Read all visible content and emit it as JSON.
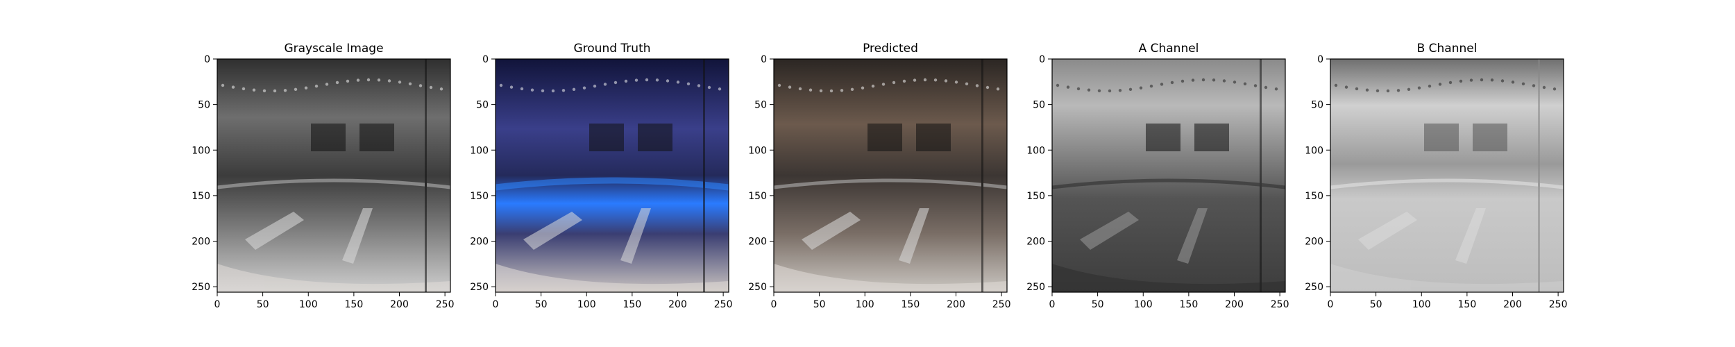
{
  "figure": {
    "panels": [
      {
        "title": "Grayscale Image",
        "icon": "grayscale-image",
        "tone": "gray"
      },
      {
        "title": "Ground Truth",
        "icon": "color-image",
        "tone": "blue"
      },
      {
        "title": "Predicted",
        "icon": "color-image",
        "tone": "warm"
      },
      {
        "title": "A Channel",
        "icon": "channel-image",
        "tone": "gray"
      },
      {
        "title": "B Channel",
        "icon": "channel-image",
        "tone": "light"
      }
    ]
  },
  "chart_data": {
    "type": "image-grid",
    "x_ticks": [
      0,
      50,
      100,
      150,
      200,
      250
    ],
    "y_ticks": [
      0,
      50,
      100,
      150,
      200,
      250
    ],
    "xlim": [
      0,
      256
    ],
    "ylim": [
      256,
      0
    ],
    "panels": [
      {
        "title": "Grayscale Image"
      },
      {
        "title": "Ground Truth"
      },
      {
        "title": "Predicted"
      },
      {
        "title": "A Channel"
      },
      {
        "title": "B Channel"
      }
    ]
  },
  "colors": {
    "gray_dark": "#3a3a3a",
    "gray_mid": "#8a8a8a",
    "gray_light": "#d6d6d6",
    "blue_accent": "#2a5bff",
    "blue_dark": "#1b2a66",
    "warm_accent": "#b9663b"
  }
}
